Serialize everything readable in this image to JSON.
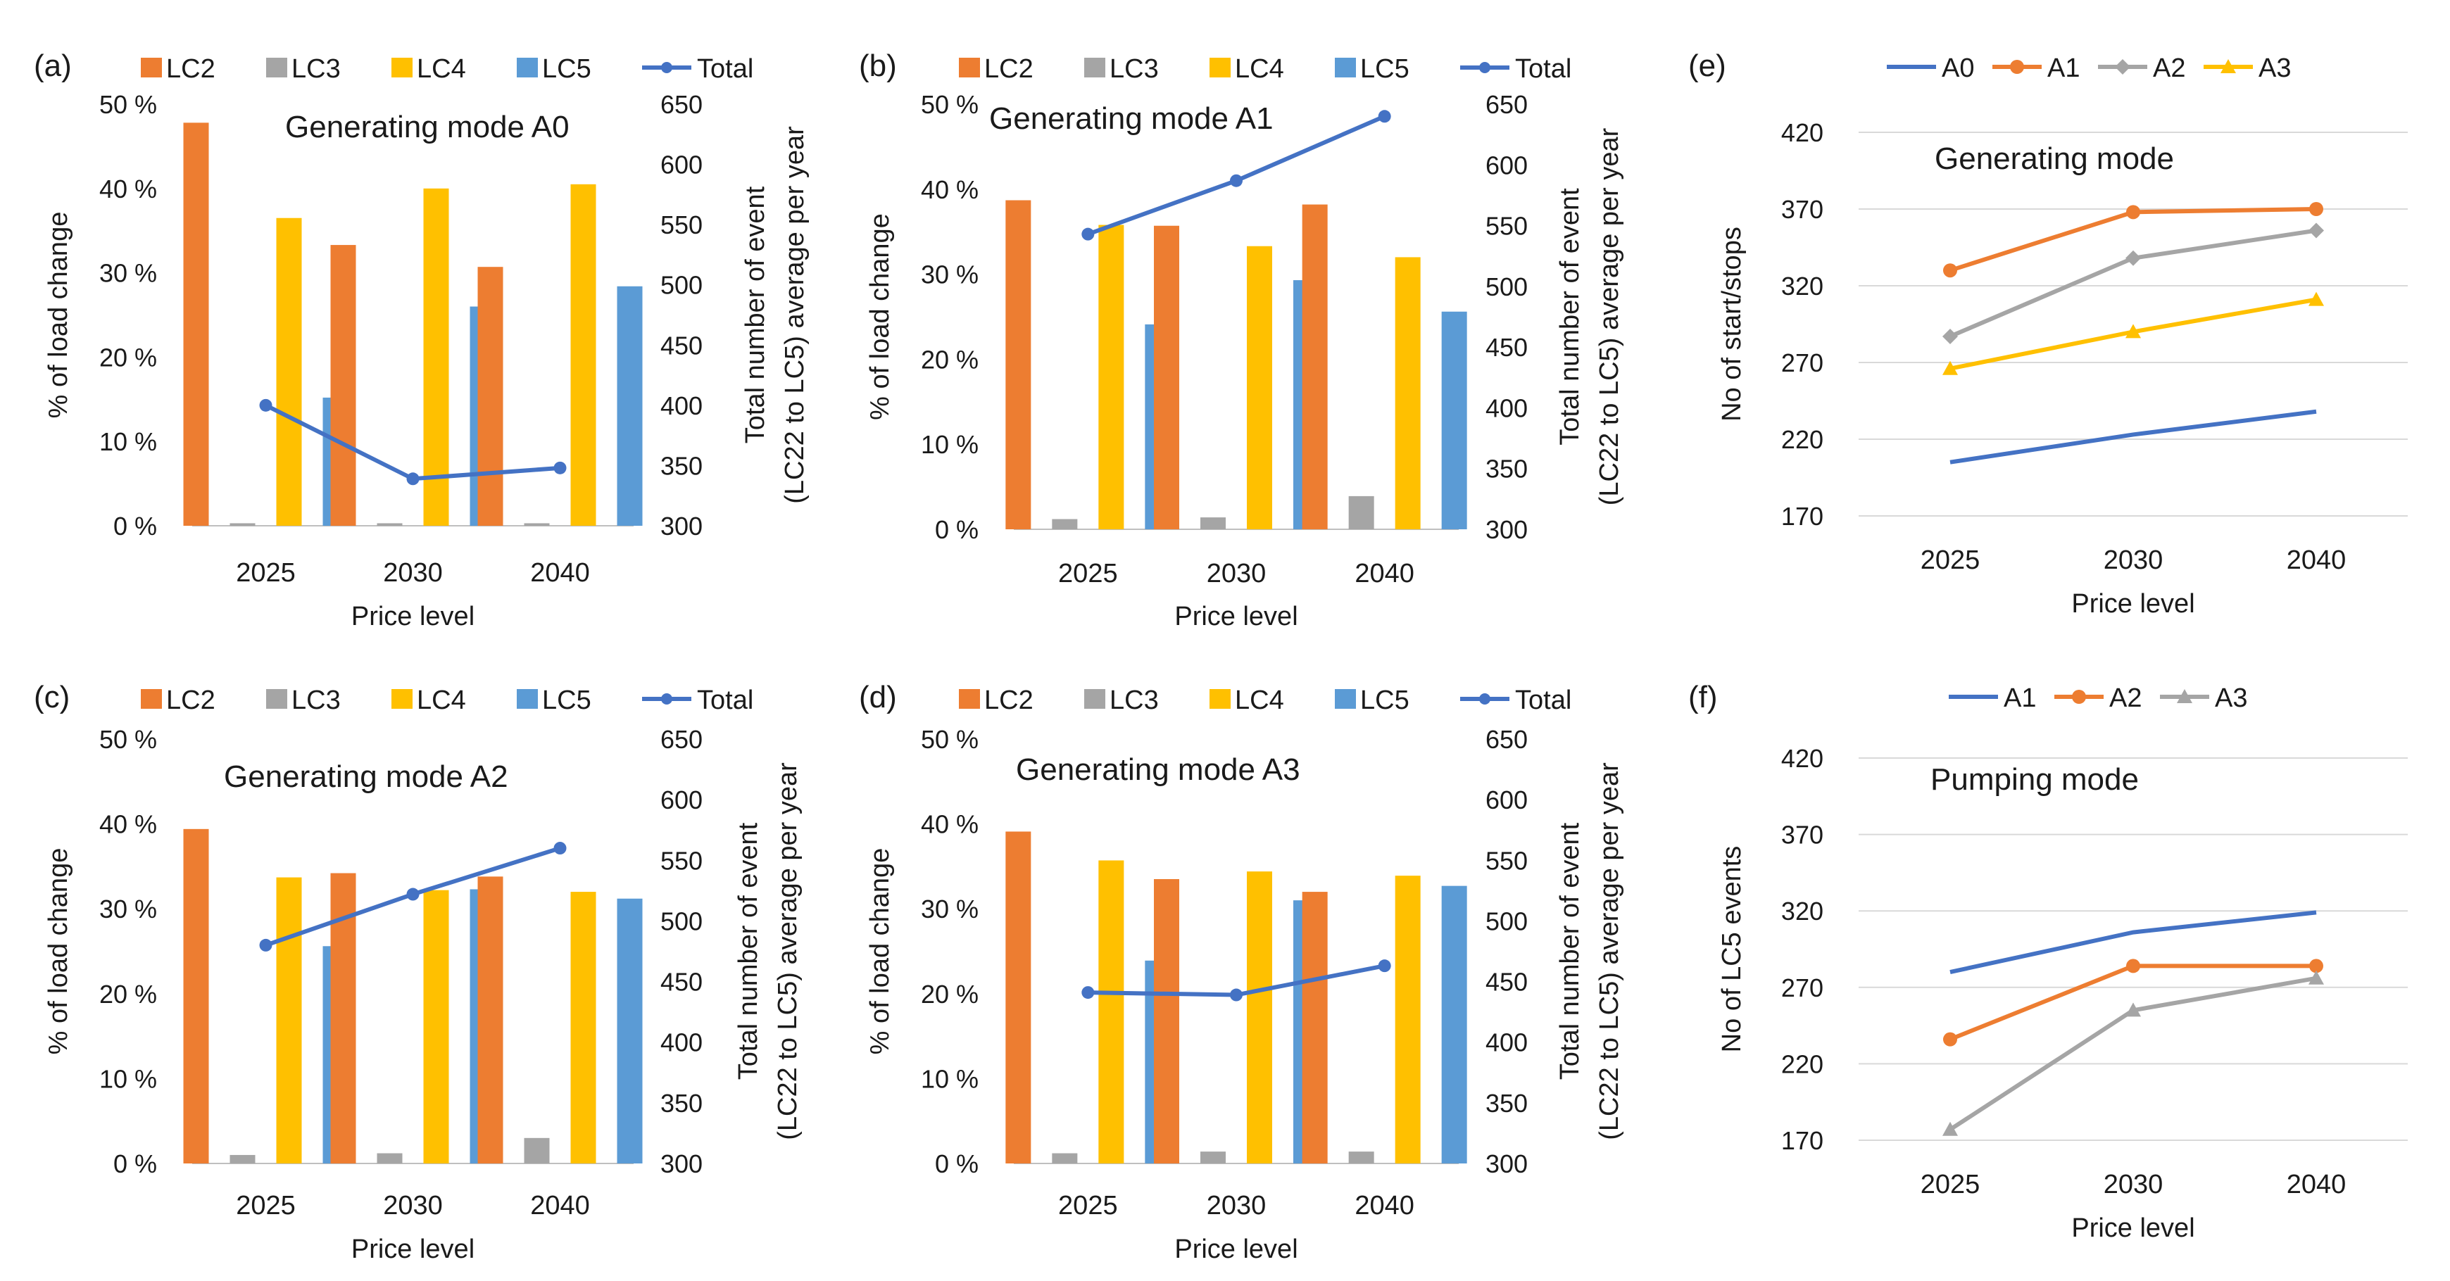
{
  "colors": {
    "LC2": "#ED7D31",
    "LC3": "#A5A5A5",
    "LC4": "#FFC000",
    "LC5": "#5B9BD5",
    "Total": "#4472C4",
    "grid": "#D9D9D9",
    "axis": "#BFBFBF"
  },
  "chart_data": [
    {
      "panel": "(a)",
      "type": "bar",
      "title": "Generating mode A0",
      "categories": [
        "2025",
        "2030",
        "2040"
      ],
      "series": [
        {
          "name": "LC2",
          "values": [
            47.8,
            33.3,
            30.7
          ]
        },
        {
          "name": "LC3",
          "values": [
            0.3,
            0.3,
            0.3
          ]
        },
        {
          "name": "LC4",
          "values": [
            36.5,
            40.0,
            40.5
          ]
        },
        {
          "name": "LC5",
          "values": [
            15.2,
            26.0,
            28.4
          ]
        }
      ],
      "line": {
        "name": "Total",
        "values": [
          400,
          339,
          348
        ]
      },
      "xlabel": "Price level",
      "ylabel": "% of load change",
      "y2label_lines": [
        "Total number of event",
        "(LC22 to LC5) average per year"
      ],
      "ylim": [
        0,
        50
      ],
      "y2lim": [
        300,
        650
      ],
      "yticks": [
        "0 %",
        "10 %",
        "20 %",
        "30 %",
        "40 %",
        "50 %"
      ],
      "y2ticks": [
        "300",
        "350",
        "400",
        "450",
        "500",
        "550",
        "600",
        "650"
      ],
      "legend": [
        "LC2",
        "LC3",
        "LC4",
        "LC5",
        "Total"
      ]
    },
    {
      "panel": "(b)",
      "type": "bar",
      "title": "Generating mode A1",
      "categories": [
        "2025",
        "2030",
        "2040"
      ],
      "series": [
        {
          "name": "LC2",
          "values": [
            38.7,
            35.7,
            38.2
          ]
        },
        {
          "name": "LC3",
          "values": [
            1.2,
            1.4,
            3.9
          ]
        },
        {
          "name": "LC4",
          "values": [
            35.8,
            33.3,
            32.0
          ]
        },
        {
          "name": "LC5",
          "values": [
            24.1,
            29.3,
            25.6
          ]
        }
      ],
      "line": {
        "name": "Total",
        "values": [
          543,
          587,
          640
        ]
      },
      "xlabel": "Price level",
      "ylabel": "% of load change",
      "y2label_lines": [
        "Total number of event",
        "(LC22 to LC5) average per year"
      ],
      "ylim": [
        0,
        50
      ],
      "y2lim": [
        300,
        650
      ],
      "yticks": [
        "0 %",
        "10 %",
        "20 %",
        "30 %",
        "40 %",
        "50 %"
      ],
      "y2ticks": [
        "300",
        "350",
        "400",
        "450",
        "500",
        "550",
        "600",
        "650"
      ],
      "legend": [
        "LC2",
        "LC3",
        "LC4",
        "LC5",
        "Total"
      ]
    },
    {
      "panel": "(c)",
      "type": "bar",
      "title": "Generating mode A2",
      "categories": [
        "2025",
        "2030",
        "2040"
      ],
      "series": [
        {
          "name": "LC2",
          "values": [
            39.4,
            34.2,
            33.8
          ]
        },
        {
          "name": "LC3",
          "values": [
            1.0,
            1.2,
            3.0
          ]
        },
        {
          "name": "LC4",
          "values": [
            33.7,
            32.2,
            32.0
          ]
        },
        {
          "name": "LC5",
          "values": [
            25.6,
            32.3,
            31.2
          ]
        }
      ],
      "line": {
        "name": "Total",
        "values": [
          480,
          522,
          560
        ]
      },
      "xlabel": "Price level",
      "ylabel": "% of load change",
      "y2label_lines": [
        "Total number of event",
        "(LC22 to LC5) average per year"
      ],
      "ylim": [
        0,
        50
      ],
      "y2lim": [
        300,
        650
      ],
      "yticks": [
        "0 %",
        "10 %",
        "20 %",
        "30 %",
        "40 %",
        "50 %"
      ],
      "y2ticks": [
        "300",
        "350",
        "400",
        "450",
        "500",
        "550",
        "600",
        "650"
      ],
      "legend": [
        "LC2",
        "LC3",
        "LC4",
        "LC5",
        "Total"
      ]
    },
    {
      "panel": "(d)",
      "type": "bar",
      "title": "Generating mode A3",
      "categories": [
        "2025",
        "2030",
        "2040"
      ],
      "series": [
        {
          "name": "LC2",
          "values": [
            39.1,
            33.5,
            32.0
          ]
        },
        {
          "name": "LC3",
          "values": [
            1.2,
            1.4,
            1.4
          ]
        },
        {
          "name": "LC4",
          "values": [
            35.7,
            34.4,
            33.9
          ]
        },
        {
          "name": "LC5",
          "values": [
            23.9,
            31.0,
            32.7
          ]
        }
      ],
      "line": {
        "name": "Total",
        "values": [
          441,
          439,
          463
        ]
      },
      "xlabel": "Price level",
      "ylabel": "% of load change",
      "y2label_lines": [
        "Total number of event",
        "(LC22 to LC5) average per year"
      ],
      "ylim": [
        0,
        50
      ],
      "y2lim": [
        300,
        650
      ],
      "yticks": [
        "0 %",
        "10 %",
        "20 %",
        "30 %",
        "40 %",
        "50 %"
      ],
      "y2ticks": [
        "300",
        "350",
        "400",
        "450",
        "500",
        "550",
        "600",
        "650"
      ],
      "legend": [
        "LC2",
        "LC3",
        "LC4",
        "LC5",
        "Total"
      ]
    },
    {
      "panel": "(e)",
      "type": "line",
      "title": "Generating mode",
      "categories": [
        "2025",
        "2030",
        "2040"
      ],
      "series": [
        {
          "name": "A0",
          "values": [
            205,
            223,
            238
          ],
          "color": "#4472C4",
          "marker": "none"
        },
        {
          "name": "A1",
          "values": [
            330,
            368,
            370
          ],
          "color": "#ED7D31",
          "marker": "circle"
        },
        {
          "name": "A2",
          "values": [
            287,
            338,
            356
          ],
          "color": "#A5A5A5",
          "marker": "diamond"
        },
        {
          "name": "A3",
          "values": [
            266,
            290,
            311
          ],
          "color": "#FFC000",
          "marker": "triangle"
        }
      ],
      "xlabel": "Price level",
      "ylabel": "No of start/stops",
      "ylim": [
        170,
        420
      ],
      "yticks": [
        "170",
        "220",
        "270",
        "320",
        "370",
        "420"
      ],
      "legend": [
        "A0",
        "A1",
        "A2",
        "A3"
      ]
    },
    {
      "panel": "(f)",
      "type": "line",
      "title": "Pumping mode",
      "categories": [
        "2025",
        "2030",
        "2040"
      ],
      "series": [
        {
          "name": "A1",
          "values": [
            280,
            306,
            319
          ],
          "color": "#4472C4",
          "marker": "none"
        },
        {
          "name": "A2",
          "values": [
            236,
            284,
            284
          ],
          "color": "#ED7D31",
          "marker": "circle"
        },
        {
          "name": "A3",
          "values": [
            177,
            255,
            276
          ],
          "color": "#A5A5A5",
          "marker": "triangle"
        }
      ],
      "xlabel": "Price level",
      "ylabel": "No of LC5 events",
      "ylim": [
        170,
        420
      ],
      "yticks": [
        "170",
        "220",
        "270",
        "320",
        "370",
        "420"
      ],
      "legend": [
        "A1",
        "A2",
        "A3"
      ]
    }
  ]
}
